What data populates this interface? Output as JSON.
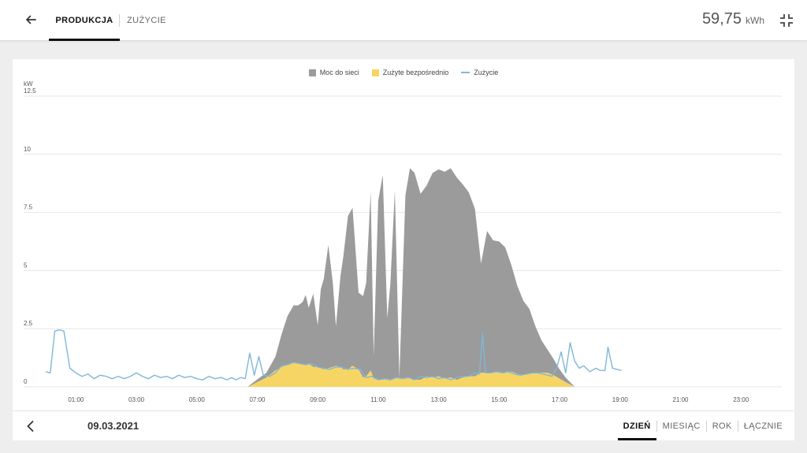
{
  "header": {
    "tabs": [
      {
        "label": "PRODUKCJA",
        "active": true
      },
      {
        "label": "ZUŻYCIE",
        "active": false
      }
    ],
    "total_value": "59,75",
    "total_unit": "kWh"
  },
  "icons": {
    "back": "arrow-left-icon",
    "collapse": "collapse-fullscreen-icon",
    "prev": "chevron-left-icon"
  },
  "footer": {
    "date": "09.03.2021",
    "periods": [
      {
        "label": "DZIEŃ",
        "active": true
      },
      {
        "label": "MIESIĄC",
        "active": false
      },
      {
        "label": "ROK",
        "active": false
      },
      {
        "label": "ŁĄCZNIE",
        "active": false
      }
    ]
  },
  "chart_data": {
    "type": "area",
    "ylabel": "kW",
    "ylim": [
      0,
      12.5
    ],
    "yticks": [
      "0",
      "2.5",
      "5",
      "7.5",
      "10",
      "12.5"
    ],
    "ytick_values": [
      0,
      2.5,
      5,
      7.5,
      10,
      12.5
    ],
    "xlim": [
      0,
      24
    ],
    "xticks": [
      "01:00",
      "03:00",
      "05:00",
      "07:00",
      "09:00",
      "11:00",
      "13:00",
      "15:00",
      "17:00",
      "19:00",
      "21:00",
      "23:00"
    ],
    "xtick_values": [
      1,
      3,
      5,
      7,
      9,
      11,
      13,
      15,
      17,
      19,
      21,
      23
    ],
    "legend": [
      "Moc do sieci",
      "Zużyte bezpośrednio",
      "Zużycie"
    ],
    "legend_position": "top-center",
    "grid": true,
    "colors": {
      "grid_feed": "#9b9b9b",
      "direct": "#f7d565",
      "consumption": "#7fb7d6"
    },
    "series": [
      {
        "name": "Moc do sieci",
        "kind": "area",
        "stack": "production",
        "x": [
          6.7,
          7.0,
          7.3,
          7.6,
          7.8,
          8.0,
          8.2,
          8.35,
          8.5,
          8.6,
          8.7,
          8.85,
          9.0,
          9.1,
          9.2,
          9.35,
          9.5,
          9.6,
          9.75,
          9.85,
          10.0,
          10.15,
          10.35,
          10.5,
          10.6,
          10.75,
          10.85,
          11.0,
          11.15,
          11.3,
          11.4,
          11.55,
          11.7,
          11.9,
          12.05,
          12.2,
          12.4,
          12.6,
          12.8,
          13.0,
          13.2,
          13.4,
          13.6,
          13.8,
          14.0,
          14.2,
          14.4,
          14.6,
          14.8,
          15.0,
          15.2,
          15.4,
          15.6,
          15.8,
          16.0,
          16.2,
          16.4,
          16.6,
          16.8,
          17.0,
          17.2,
          17.5
        ],
        "y": [
          0.02,
          0.12,
          0.2,
          0.6,
          1.4,
          2.1,
          2.45,
          2.5,
          2.7,
          3.0,
          2.4,
          3.15,
          1.8,
          3.4,
          3.9,
          5.3,
          3.6,
          1.7,
          3.9,
          4.9,
          6.6,
          6.8,
          3.3,
          3.5,
          4.0,
          7.7,
          1.0,
          7.7,
          8.8,
          2.6,
          4.1,
          8.1,
          0.0,
          7.9,
          9.0,
          8.9,
          8.0,
          8.2,
          8.8,
          8.9,
          8.9,
          9.0,
          8.7,
          8.3,
          7.9,
          7.2,
          4.7,
          6.1,
          5.7,
          5.6,
          5.4,
          4.6,
          3.8,
          3.2,
          2.8,
          2.0,
          1.4,
          1.0,
          0.7,
          0.4,
          0.2,
          0.0
        ]
      },
      {
        "name": "Zużyte bezpośrednio",
        "kind": "area",
        "stack": "production",
        "x": [
          6.7,
          7.0,
          7.3,
          7.6,
          7.8,
          8.0,
          8.2,
          8.35,
          8.5,
          8.6,
          8.7,
          8.85,
          9.0,
          9.1,
          9.2,
          9.35,
          9.5,
          9.6,
          9.75,
          9.85,
          10.0,
          10.15,
          10.35,
          10.5,
          10.6,
          10.75,
          10.85,
          11.0,
          11.15,
          11.3,
          11.4,
          11.55,
          11.7,
          11.9,
          12.05,
          12.2,
          12.4,
          12.6,
          12.8,
          13.0,
          13.2,
          13.4,
          13.6,
          13.8,
          14.0,
          14.2,
          14.4,
          14.6,
          14.8,
          15.0,
          15.2,
          15.4,
          15.6,
          15.8,
          16.0,
          16.2,
          16.4,
          16.6,
          16.8,
          17.0,
          17.2,
          17.5
        ],
        "y": [
          0.0,
          0.2,
          0.4,
          0.7,
          0.85,
          0.95,
          1.05,
          1.0,
          0.95,
          0.95,
          1.0,
          0.85,
          0.85,
          0.8,
          0.75,
          0.8,
          0.85,
          0.9,
          0.85,
          0.75,
          0.75,
          0.9,
          0.75,
          0.4,
          0.45,
          0.7,
          0.35,
          0.3,
          0.3,
          0.35,
          0.3,
          0.35,
          0.4,
          0.35,
          0.4,
          0.3,
          0.3,
          0.45,
          0.4,
          0.45,
          0.35,
          0.4,
          0.3,
          0.4,
          0.45,
          0.45,
          0.6,
          0.6,
          0.6,
          0.65,
          0.6,
          0.65,
          0.55,
          0.5,
          0.55,
          0.6,
          0.6,
          0.6,
          0.5,
          0.35,
          0.2,
          0.0
        ]
      },
      {
        "name": "Zużycie",
        "kind": "line",
        "x": [
          0.0,
          0.15,
          0.3,
          0.45,
          0.6,
          0.8,
          1.0,
          1.2,
          1.4,
          1.6,
          1.8,
          2.0,
          2.2,
          2.4,
          2.6,
          2.8,
          3.0,
          3.2,
          3.4,
          3.6,
          3.8,
          4.0,
          4.2,
          4.4,
          4.6,
          4.8,
          5.0,
          5.2,
          5.4,
          5.6,
          5.8,
          6.0,
          6.15,
          6.3,
          6.45,
          6.6,
          6.75,
          6.9,
          7.05,
          7.2,
          7.4,
          7.6,
          7.8,
          8.0,
          8.2,
          8.4,
          8.6,
          8.8,
          9.0,
          9.2,
          9.4,
          9.6,
          9.8,
          10.0,
          10.2,
          10.4,
          10.6,
          10.8,
          11.0,
          11.2,
          11.4,
          11.6,
          11.8,
          12.0,
          12.2,
          12.4,
          12.6,
          12.8,
          13.0,
          13.2,
          13.4,
          13.6,
          13.8,
          14.0,
          14.2,
          14.35,
          14.45,
          14.55,
          14.7,
          14.9,
          15.1,
          15.3,
          15.5,
          15.7,
          15.9,
          16.1,
          16.3,
          16.45,
          16.6,
          16.75,
          16.9,
          17.05,
          17.2,
          17.35,
          17.5,
          17.65,
          17.8,
          18.0,
          18.2,
          18.35,
          18.5,
          18.6,
          18.75,
          18.9,
          19.05
        ],
        "y": [
          0.65,
          0.6,
          2.4,
          2.45,
          2.4,
          0.8,
          0.6,
          0.45,
          0.55,
          0.35,
          0.5,
          0.45,
          0.35,
          0.45,
          0.35,
          0.45,
          0.6,
          0.45,
          0.35,
          0.5,
          0.4,
          0.45,
          0.35,
          0.5,
          0.4,
          0.45,
          0.35,
          0.3,
          0.45,
          0.35,
          0.4,
          0.3,
          0.4,
          0.3,
          0.4,
          0.35,
          1.45,
          0.5,
          1.3,
          0.5,
          0.45,
          0.6,
          0.9,
          0.95,
          1.05,
          1.0,
          0.95,
          1.0,
          0.85,
          0.8,
          0.75,
          0.85,
          0.85,
          0.75,
          0.8,
          0.75,
          0.4,
          0.45,
          0.3,
          0.35,
          0.3,
          0.4,
          0.35,
          0.4,
          0.3,
          0.45,
          0.4,
          0.45,
          0.35,
          0.4,
          0.3,
          0.4,
          0.45,
          0.45,
          0.6,
          0.55,
          2.3,
          0.6,
          0.6,
          0.65,
          0.6,
          0.65,
          0.55,
          0.5,
          0.55,
          0.6,
          0.6,
          0.55,
          0.5,
          0.45,
          0.8,
          1.5,
          0.6,
          1.9,
          1.1,
          0.8,
          0.9,
          0.65,
          0.8,
          0.7,
          0.7,
          1.7,
          0.8,
          0.75,
          0.7
        ]
      }
    ]
  }
}
